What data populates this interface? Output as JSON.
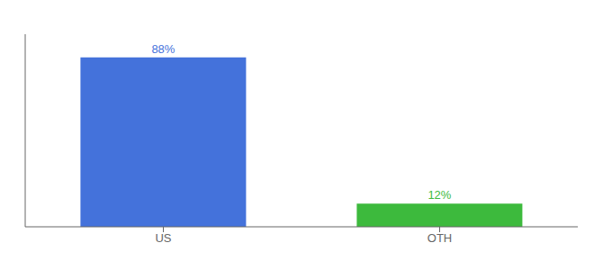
{
  "chart_data": {
    "type": "bar",
    "categories": [
      "US",
      "OTH"
    ],
    "values": [
      88,
      12
    ],
    "value_labels": [
      "88%",
      "12%"
    ],
    "colors": [
      "#4472db",
      "#3dba3d"
    ],
    "ylim": [
      0,
      100
    ],
    "data_labels": true,
    "tick_labels": "x"
  }
}
